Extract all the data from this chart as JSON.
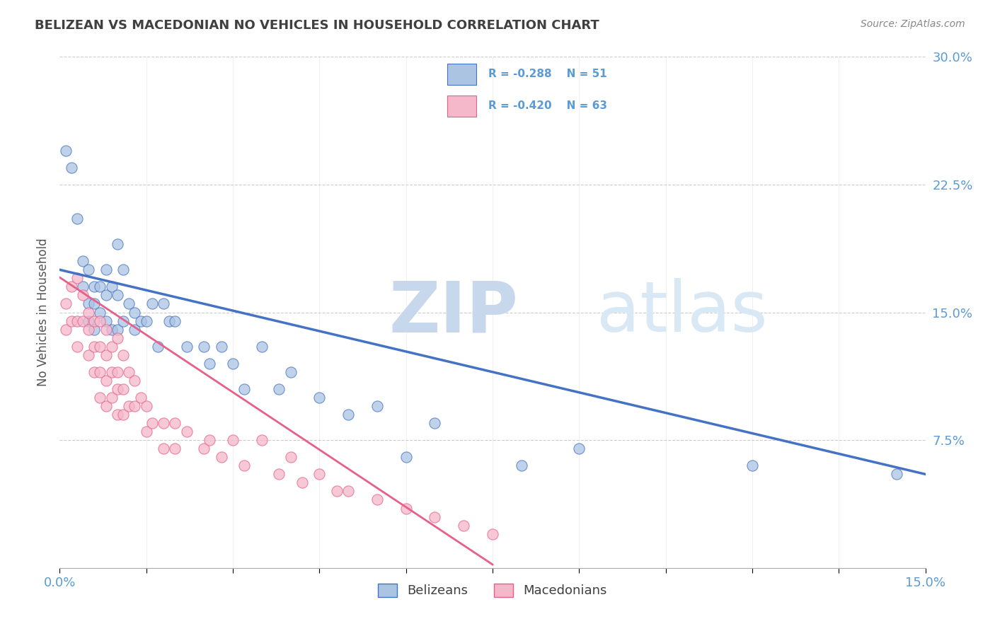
{
  "title": "BELIZEAN VS MACEDONIAN NO VEHICLES IN HOUSEHOLD CORRELATION CHART",
  "source": "Source: ZipAtlas.com",
  "ylabel": "No Vehicles in Household",
  "y_ticks_right": [
    "7.5%",
    "15.0%",
    "22.5%",
    "30.0%"
  ],
  "legend_blue_label": "Belizeans",
  "legend_pink_label": "Macedonians",
  "legend_blue_r": "R = -0.288",
  "legend_blue_n": "N = 51",
  "legend_pink_r": "R = -0.420",
  "legend_pink_n": "N = 63",
  "xlim": [
    0.0,
    0.15
  ],
  "ylim": [
    0.0,
    0.3
  ],
  "blue_scatter_x": [
    0.001,
    0.002,
    0.003,
    0.004,
    0.004,
    0.005,
    0.005,
    0.005,
    0.006,
    0.006,
    0.006,
    0.007,
    0.007,
    0.008,
    0.008,
    0.008,
    0.009,
    0.009,
    0.01,
    0.01,
    0.01,
    0.011,
    0.011,
    0.012,
    0.013,
    0.013,
    0.014,
    0.015,
    0.016,
    0.017,
    0.018,
    0.019,
    0.02,
    0.022,
    0.025,
    0.026,
    0.028,
    0.03,
    0.032,
    0.035,
    0.038,
    0.04,
    0.045,
    0.05,
    0.055,
    0.06,
    0.065,
    0.08,
    0.09,
    0.12,
    0.145
  ],
  "blue_scatter_y": [
    0.245,
    0.235,
    0.205,
    0.18,
    0.165,
    0.175,
    0.155,
    0.145,
    0.165,
    0.155,
    0.14,
    0.165,
    0.15,
    0.175,
    0.16,
    0.145,
    0.165,
    0.14,
    0.19,
    0.16,
    0.14,
    0.175,
    0.145,
    0.155,
    0.15,
    0.14,
    0.145,
    0.145,
    0.155,
    0.13,
    0.155,
    0.145,
    0.145,
    0.13,
    0.13,
    0.12,
    0.13,
    0.12,
    0.105,
    0.13,
    0.105,
    0.115,
    0.1,
    0.09,
    0.095,
    0.065,
    0.085,
    0.06,
    0.07,
    0.06,
    0.055
  ],
  "pink_scatter_x": [
    0.001,
    0.001,
    0.002,
    0.002,
    0.003,
    0.003,
    0.003,
    0.004,
    0.004,
    0.005,
    0.005,
    0.005,
    0.006,
    0.006,
    0.006,
    0.007,
    0.007,
    0.007,
    0.007,
    0.008,
    0.008,
    0.008,
    0.008,
    0.009,
    0.009,
    0.009,
    0.01,
    0.01,
    0.01,
    0.01,
    0.011,
    0.011,
    0.011,
    0.012,
    0.012,
    0.013,
    0.013,
    0.014,
    0.015,
    0.015,
    0.016,
    0.018,
    0.018,
    0.02,
    0.02,
    0.022,
    0.025,
    0.026,
    0.028,
    0.03,
    0.032,
    0.035,
    0.038,
    0.04,
    0.042,
    0.045,
    0.048,
    0.05,
    0.055,
    0.06,
    0.065,
    0.07,
    0.075
  ],
  "pink_scatter_y": [
    0.155,
    0.14,
    0.165,
    0.145,
    0.17,
    0.145,
    0.13,
    0.16,
    0.145,
    0.15,
    0.14,
    0.125,
    0.145,
    0.13,
    0.115,
    0.145,
    0.13,
    0.115,
    0.1,
    0.14,
    0.125,
    0.11,
    0.095,
    0.13,
    0.115,
    0.1,
    0.135,
    0.115,
    0.105,
    0.09,
    0.125,
    0.105,
    0.09,
    0.115,
    0.095,
    0.11,
    0.095,
    0.1,
    0.095,
    0.08,
    0.085,
    0.085,
    0.07,
    0.085,
    0.07,
    0.08,
    0.07,
    0.075,
    0.065,
    0.075,
    0.06,
    0.075,
    0.055,
    0.065,
    0.05,
    0.055,
    0.045,
    0.045,
    0.04,
    0.035,
    0.03,
    0.025,
    0.02
  ],
  "blue_line_x": [
    0.0,
    0.15
  ],
  "blue_line_y": [
    0.175,
    0.055
  ],
  "pink_line_x": [
    -0.002,
    0.075
  ],
  "pink_line_y": [
    0.175,
    0.002
  ],
  "blue_color": "#aac4e2",
  "pink_color": "#f5b8ca",
  "blue_line_color": "#4472c4",
  "pink_line_color": "#e8608a",
  "title_color": "#404040",
  "axis_label_color": "#5b9bd5",
  "source_color": "#888888",
  "background_color": "#ffffff",
  "grid_color": "#cccccc",
  "watermark_color": "#dde8f0"
}
